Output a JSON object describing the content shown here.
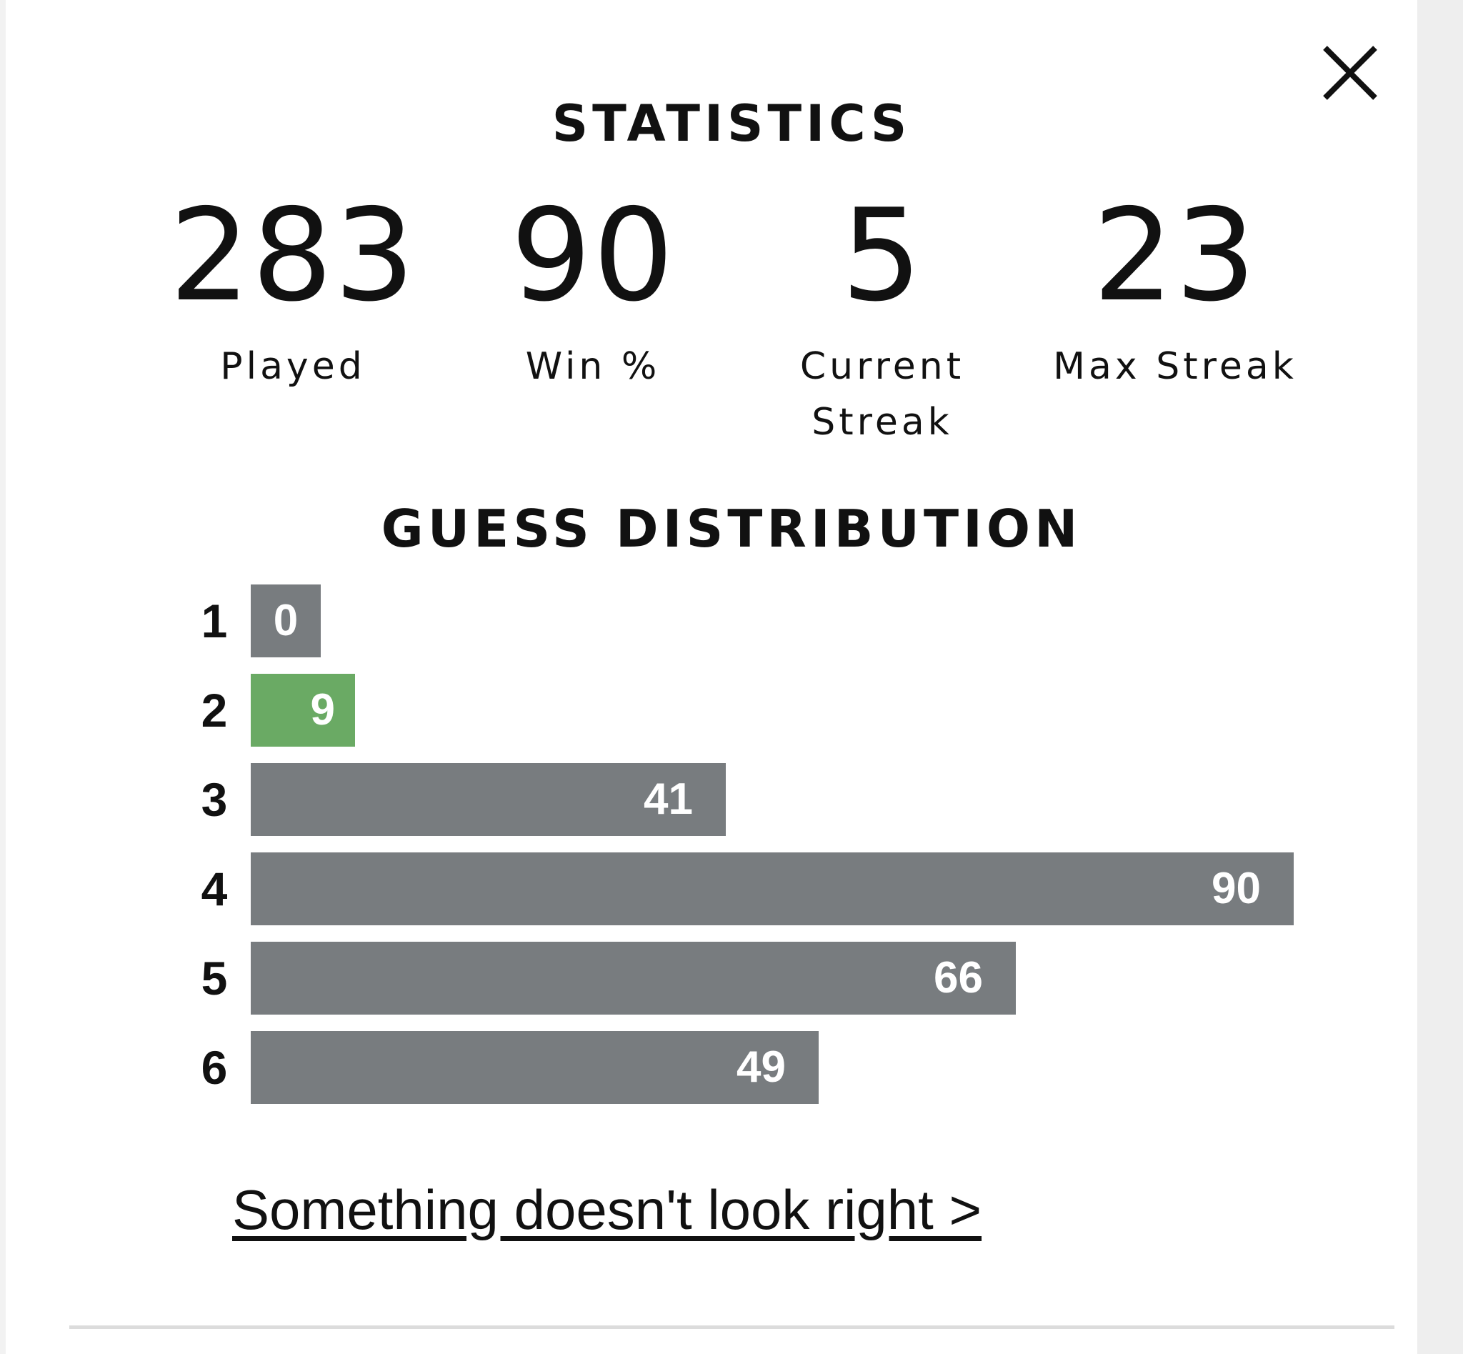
{
  "modal": {
    "close_icon": "close-icon",
    "statistics_title": "STATISTICS",
    "stats": [
      {
        "value": "283",
        "label": "Played"
      },
      {
        "value": "90",
        "label": "Win %"
      },
      {
        "value": "5",
        "label": "Current Streak"
      },
      {
        "value": "23",
        "label": "Max Streak"
      }
    ],
    "distribution_title": "GUESS DISTRIBUTION",
    "distribution": [
      {
        "guess": "1",
        "count": "0"
      },
      {
        "guess": "2",
        "count": "9"
      },
      {
        "guess": "3",
        "count": "41"
      },
      {
        "guess": "4",
        "count": "90"
      },
      {
        "guess": "5",
        "count": "66"
      },
      {
        "guess": "6",
        "count": "49"
      }
    ],
    "highlight_guess": "2",
    "link_text": "Something doesn't look right >",
    "colors": {
      "bar": "#787c7f",
      "highlight": "#6aaa64",
      "text": "#111111"
    }
  }
}
